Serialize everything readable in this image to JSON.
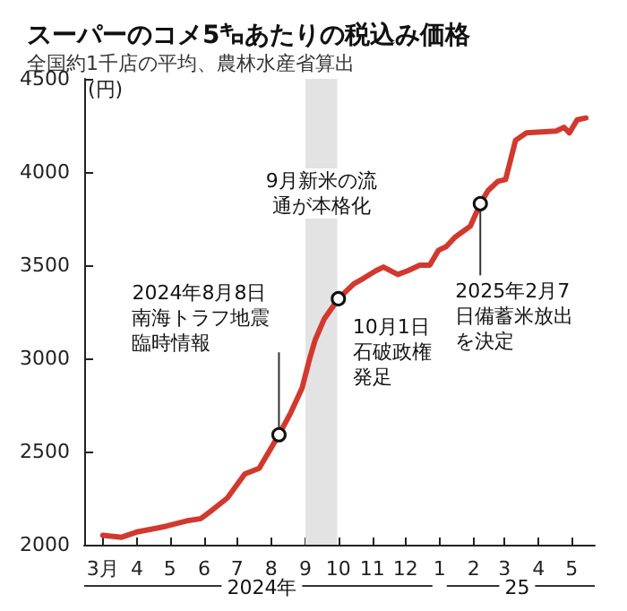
{
  "chart_data": {
    "type": "line",
    "title": "スーパーのコメ5㌔あたりの税込み価格",
    "subtitle": "全国約1千店の平均、農林水産省算出",
    "ylabel": "(円)",
    "x": [
      "2024-03-01",
      "2024-03-18",
      "2024-04-02",
      "2024-04-20",
      "2024-04-28",
      "2024-05-18",
      "2024-05-29",
      "2024-06-07",
      "2024-06-22",
      "2024-07-08",
      "2024-07-21",
      "2024-08-08",
      "2024-08-18",
      "2024-08-29",
      "2024-09-05",
      "2024-09-10",
      "2024-09-18",
      "2024-10-01",
      "2024-10-15",
      "2024-10-24",
      "2024-11-04",
      "2024-11-11",
      "2024-11-24",
      "2024-12-03",
      "2024-12-14",
      "2024-12-23",
      "2024-12-31",
      "2025-01-07",
      "2025-01-15",
      "2025-01-29",
      "2025-02-07",
      "2025-02-14",
      "2025-02-23",
      "2025-03-02",
      "2025-03-11",
      "2025-03-21",
      "2025-04-17",
      "2025-04-24",
      "2025-04-29",
      "2025-05-06",
      "2025-05-14"
    ],
    "series": [
      {
        "color": "#d2392e",
        "values": [
          2050,
          2040,
          2070,
          2090,
          2100,
          2130,
          2140,
          2180,
          2250,
          2380,
          2410,
          2590,
          2700,
          2840,
          3000,
          3100,
          3210,
          3320,
          3400,
          3430,
          3470,
          3490,
          3450,
          3470,
          3500,
          3500,
          3580,
          3600,
          3650,
          3710,
          3830,
          3900,
          3950,
          3960,
          4170,
          4210,
          4220,
          4240,
          4210,
          4280,
          4290
        ]
      }
    ],
    "xlim": [
      "2024-02-13",
      "2025-05-22"
    ],
    "xticks": [
      {
        "value": "2024-03-01",
        "label": "3月"
      },
      {
        "value": "2024-04-01",
        "label": "4"
      },
      {
        "value": "2024-05-01",
        "label": "5"
      },
      {
        "value": "2024-06-01",
        "label": "6"
      },
      {
        "value": "2024-07-01",
        "label": "7"
      },
      {
        "value": "2024-08-01",
        "label": "8"
      },
      {
        "value": "2024-09-01",
        "label": "9"
      },
      {
        "value": "2024-10-01",
        "label": "10"
      },
      {
        "value": "2024-11-01",
        "label": "11"
      },
      {
        "value": "2024-12-01",
        "label": "12"
      },
      {
        "value": "2025-01-01",
        "label": "1"
      },
      {
        "value": "2025-02-01",
        "label": "2"
      },
      {
        "value": "2025-03-01",
        "label": "3"
      },
      {
        "value": "2025-04-01",
        "label": "4"
      },
      {
        "value": "2025-05-01",
        "label": "5"
      }
    ],
    "ylim": [
      2000,
      4500
    ],
    "yticks": [
      2000,
      2500,
      3000,
      3500,
      4000,
      4500
    ],
    "grid": false,
    "marker": "none",
    "line_style": "solid",
    "bands": [
      {
        "axis": "x",
        "from": "2024-09-01",
        "to": "2024-09-30",
        "label": "9月新米の流通が本格化",
        "color": "#e3e3e3"
      }
    ],
    "annotations": [
      {
        "text": "2024年8月8日南海トラフ地震臨時情報",
        "x": "2024-08-08",
        "y": 2590
      },
      {
        "text": "10月1日石破政権発足",
        "x": "2024-10-01",
        "y": 3320
      },
      {
        "text": "2025年2月7日備蓄米放出を決定",
        "x": "2025-02-07",
        "y": 3830
      },
      "2024年",
      "25"
    ]
  }
}
